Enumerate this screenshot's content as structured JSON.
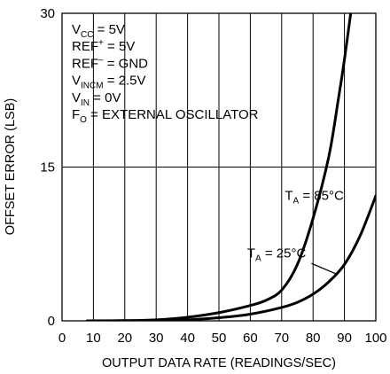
{
  "chart_data": {
    "type": "line",
    "xlabel": "OUTPUT DATA RATE (READINGS/SEC)",
    "ylabel": "OFFSET ERROR (LSB)",
    "xlim": [
      0,
      100
    ],
    "ylim": [
      0,
      30
    ],
    "x_ticks": [
      "0",
      "10",
      "20",
      "30",
      "40",
      "50",
      "60",
      "70",
      "80",
      "90",
      "100"
    ],
    "y_ticks": [
      "0",
      "15",
      "30"
    ],
    "grid": "vertical lines at 10–90 and horizontal line at 15",
    "conditions": [
      {
        "main": "V",
        "sub": "CC",
        "rest": " = 5V"
      },
      {
        "main": "REF",
        "sup": "+",
        "rest": " = 5V"
      },
      {
        "main": "REF",
        "sup": "–",
        "rest": " = GND"
      },
      {
        "main": "V",
        "sub": "INCM",
        "rest": " = 2.5V"
      },
      {
        "main": "V",
        "sub": "IN",
        "rest": " = 0V"
      },
      {
        "main": "F",
        "sub": "O",
        "rest": " = EXTERNAL OSCILLATOR"
      }
    ],
    "series": [
      {
        "label_main": "T",
        "label_sub": "A",
        "label_rest": " = 85°C",
        "x": [
          8,
          20,
          30,
          40,
          50,
          60,
          65,
          70,
          75,
          80,
          85,
          88,
          90,
          92
        ],
        "y": [
          0,
          0.02,
          0.1,
          0.35,
          0.8,
          1.5,
          2.0,
          3.0,
          5.5,
          10.0,
          16.0,
          21.5,
          25.5,
          30.0
        ]
      },
      {
        "label_main": "T",
        "label_sub": "A",
        "label_rest": " = 25°C",
        "x": [
          8,
          30,
          40,
          50,
          60,
          70,
          75,
          80,
          85,
          90,
          95,
          100
        ],
        "y": [
          0,
          0.02,
          0.1,
          0.3,
          0.65,
          1.3,
          1.8,
          2.6,
          3.8,
          5.5,
          8.3,
          12.2
        ]
      }
    ]
  }
}
